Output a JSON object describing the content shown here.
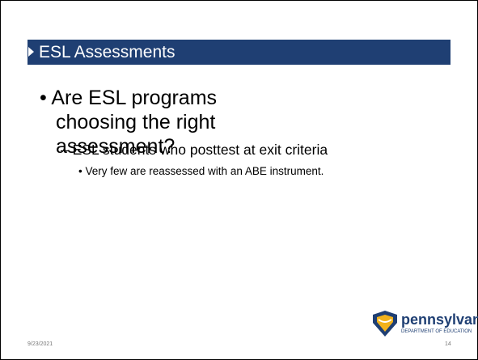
{
  "header": {
    "title": "ESL Assessments"
  },
  "bullets": [
    {
      "text": "Are ESL programs choosing the right assessment?",
      "level": 1
    },
    {
      "text": "ESL students who posttest at exit criteria",
      "level": 2
    },
    {
      "text": "Very few are reassessed with an ABE instrument.",
      "level": 3
    }
  ],
  "logo": {
    "name": "pennsylvania",
    "subtitle": "DEPARTMENT OF EDUCATION"
  },
  "footer": {
    "date": "9/23/2021",
    "page": "14"
  }
}
